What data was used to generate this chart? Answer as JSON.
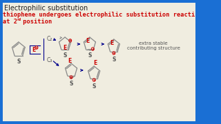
{
  "bg_outer": "#1a6fd4",
  "bg_inner": "#f0ede0",
  "title_text": "Electrophilic substitution",
  "title_color": "#222222",
  "title_fontsize": 7.0,
  "subtitle_line1": "thiophene undergoes electrophilic substitution reacti",
  "subtitle_line2": "at 2",
  "subtitle_suffix": "nd",
  "subtitle_suffix2": " position",
  "subtitle_color": "#cc0000",
  "subtitle_fontsize": 6.2,
  "arrow_color": "#00008b",
  "ring_color": "#888888",
  "s_color": "#555555",
  "e_color": "#cc0000",
  "plus_color": "#cc0000",
  "label_c2": "C₂",
  "label_c3": "C₃",
  "extra_stable_line1": "extra stable",
  "extra_stable_line2": "contributing structure",
  "extra_stable_fontsize": 5.0
}
